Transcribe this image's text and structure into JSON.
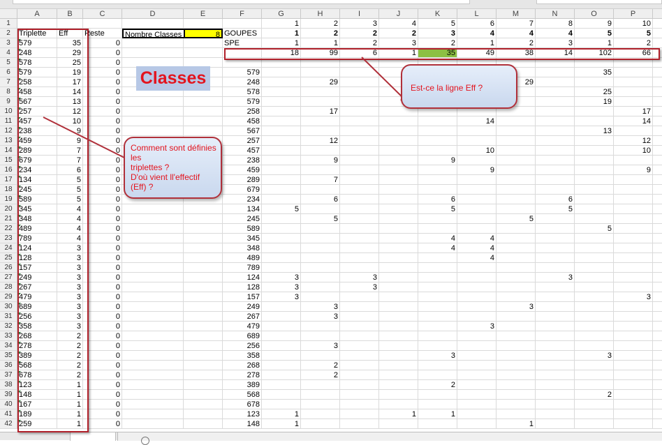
{
  "columns": [
    "A",
    "B",
    "C",
    "D",
    "E",
    "F",
    "G",
    "H",
    "I",
    "J",
    "K",
    "L",
    "M",
    "N",
    "O",
    "P",
    ""
  ],
  "colors": {
    "highlight_yellow": "#ffff00",
    "highlight_green": "#8cc043",
    "annotation_red": "#e3141e",
    "border_red": "#b0202a",
    "label_bg": "#b7c8e6"
  },
  "label_classes": "Classes",
  "callout_eff": "Est-ce la ligne Eff ?",
  "callout_triplettes": [
    "Comment sont définies les",
    "triplettes ?",
    "D'où vient ll'effectif (Eff) ?"
  ],
  "grid": {
    "rows": [
      {
        "n": "1",
        "cells": {
          "G": "1",
          "H": "2",
          "I": "3",
          "J": "4",
          "K": "5",
          "L": "6",
          "M": "7",
          "N": "8",
          "O": "9",
          "P": "10"
        }
      },
      {
        "n": "2",
        "cells": {
          "A": "Triplette",
          "B": "Eff",
          "C": "Reste",
          "D": "Nombre Classes",
          "E": "8",
          "F": "GOUPES",
          "G": "1",
          "H": "2",
          "I": "2",
          "J": "2",
          "K": "3",
          "L": "4",
          "M": "4",
          "N": "4",
          "O": "5",
          "P": "5"
        }
      },
      {
        "n": "3",
        "cells": {
          "A": "579",
          "B": "35",
          "C": "0",
          "F": "SPE",
          "G": "1",
          "H": "1",
          "I": "2",
          "J": "3",
          "K": "2",
          "L": "1",
          "M": "2",
          "N": "3",
          "O": "1",
          "P": "2"
        }
      },
      {
        "n": "4",
        "cells": {
          "A": "248",
          "B": "29",
          "C": "0",
          "G": "18",
          "H": "99",
          "I": "6",
          "J": "1",
          "K": "35",
          "L": "49",
          "M": "38",
          "N": "14",
          "O": "102",
          "P": "66"
        }
      },
      {
        "n": "5",
        "cells": {
          "A": "578",
          "B": "25",
          "C": "0"
        }
      },
      {
        "n": "6",
        "cells": {
          "A": "579",
          "B": "19",
          "C": "0",
          "F": "579",
          "O": "35"
        }
      },
      {
        "n": "7",
        "cells": {
          "A": "258",
          "B": "17",
          "C": "0",
          "F": "248",
          "H": "29",
          "M": "29"
        }
      },
      {
        "n": "8",
        "cells": {
          "A": "458",
          "B": "14",
          "C": "0",
          "F": "578",
          "O": "25"
        }
      },
      {
        "n": "9",
        "cells": {
          "A": "567",
          "B": "13",
          "C": "0",
          "F": "579",
          "O": "19"
        }
      },
      {
        "n": "10",
        "cells": {
          "A": "257",
          "B": "12",
          "C": "0",
          "F": "258",
          "H": "17",
          "P": "17"
        }
      },
      {
        "n": "11",
        "cells": {
          "A": "457",
          "B": "10",
          "C": "0",
          "F": "458",
          "L": "14",
          "P": "14"
        }
      },
      {
        "n": "12",
        "cells": {
          "A": "238",
          "B": "9",
          "C": "0",
          "F": "567",
          "O": "13"
        }
      },
      {
        "n": "13",
        "cells": {
          "A": "459",
          "B": "9",
          "C": "0",
          "F": "257",
          "H": "12",
          "P": "12"
        }
      },
      {
        "n": "14",
        "cells": {
          "A": "289",
          "B": "7",
          "C": "0",
          "F": "457",
          "L": "10",
          "P": "10"
        }
      },
      {
        "n": "15",
        "cells": {
          "A": "679",
          "B": "7",
          "C": "0",
          "F": "238",
          "H": "9",
          "K": "9"
        }
      },
      {
        "n": "16",
        "cells": {
          "A": "234",
          "B": "6",
          "C": "0",
          "F": "459",
          "L": "9",
          "P": "9"
        }
      },
      {
        "n": "17",
        "cells": {
          "A": "134",
          "B": "5",
          "C": "0",
          "F": "289",
          "H": "7"
        }
      },
      {
        "n": "18",
        "cells": {
          "A": "245",
          "B": "5",
          "C": "0",
          "F": "679"
        }
      },
      {
        "n": "19",
        "cells": {
          "A": "589",
          "B": "5",
          "C": "0",
          "F": "234",
          "H": "6",
          "K": "6",
          "N": "6"
        }
      },
      {
        "n": "20",
        "cells": {
          "A": "345",
          "B": "4",
          "C": "0",
          "F": "134",
          "G": "5",
          "K": "5",
          "N": "5"
        }
      },
      {
        "n": "21",
        "cells": {
          "A": "348",
          "B": "4",
          "C": "0",
          "F": "245",
          "H": "5",
          "M": "5"
        }
      },
      {
        "n": "22",
        "cells": {
          "A": "489",
          "B": "4",
          "C": "0",
          "F": "589",
          "O": "5"
        }
      },
      {
        "n": "23",
        "cells": {
          "A": "789",
          "B": "4",
          "C": "0",
          "F": "345",
          "K": "4",
          "L": "4"
        }
      },
      {
        "n": "24",
        "cells": {
          "A": "124",
          "B": "3",
          "C": "0",
          "F": "348",
          "K": "4",
          "L": "4"
        }
      },
      {
        "n": "25",
        "cells": {
          "A": "128",
          "B": "3",
          "C": "0",
          "F": "489",
          "L": "4"
        }
      },
      {
        "n": "26",
        "cells": {
          "A": "157",
          "B": "3",
          "C": "0",
          "F": "789"
        }
      },
      {
        "n": "27",
        "cells": {
          "A": "249",
          "B": "3",
          "C": "0",
          "F": "124",
          "G": "3",
          "I": "3",
          "N": "3"
        }
      },
      {
        "n": "28",
        "cells": {
          "A": "267",
          "B": "3",
          "C": "0",
          "F": "128",
          "G": "3",
          "I": "3"
        }
      },
      {
        "n": "29",
        "cells": {
          "A": "479",
          "B": "3",
          "C": "0",
          "F": "157",
          "G": "3",
          "P": "3"
        }
      },
      {
        "n": "30",
        "cells": {
          "A": "689",
          "B": "3",
          "C": "0",
          "F": "249",
          "H": "3",
          "M": "3"
        }
      },
      {
        "n": "31",
        "cells": {
          "A": "256",
          "B": "3",
          "C": "0",
          "F": "267",
          "H": "3"
        }
      },
      {
        "n": "32",
        "cells": {
          "A": "358",
          "B": "3",
          "C": "0",
          "F": "479",
          "L": "3"
        }
      },
      {
        "n": "33",
        "cells": {
          "A": "268",
          "B": "2",
          "C": "0",
          "F": "689"
        }
      },
      {
        "n": "34",
        "cells": {
          "A": "278",
          "B": "2",
          "C": "0",
          "F": "256",
          "H": "3"
        }
      },
      {
        "n": "35",
        "cells": {
          "A": "389",
          "B": "2",
          "C": "0",
          "F": "358",
          "K": "3",
          "O": "3"
        }
      },
      {
        "n": "36",
        "cells": {
          "A": "568",
          "B": "2",
          "C": "0",
          "F": "268",
          "H": "2"
        }
      },
      {
        "n": "37",
        "cells": {
          "A": "678",
          "B": "2",
          "C": "0",
          "F": "278",
          "H": "2"
        }
      },
      {
        "n": "38",
        "cells": {
          "A": "123",
          "B": "1",
          "C": "0",
          "F": "389",
          "K": "2"
        }
      },
      {
        "n": "39",
        "cells": {
          "A": "148",
          "B": "1",
          "C": "0",
          "F": "568",
          "O": "2"
        }
      },
      {
        "n": "40",
        "cells": {
          "A": "167",
          "B": "1",
          "C": "0",
          "F": "678"
        }
      },
      {
        "n": "41",
        "cells": {
          "A": "189",
          "B": "1",
          "C": "0",
          "F": "123",
          "G": "1",
          "J": "1",
          "K": "1"
        }
      },
      {
        "n": "42",
        "cells": {
          "A": "259",
          "B": "1",
          "C": "0",
          "F": "148",
          "G": "1",
          "M": "1"
        }
      }
    ]
  }
}
